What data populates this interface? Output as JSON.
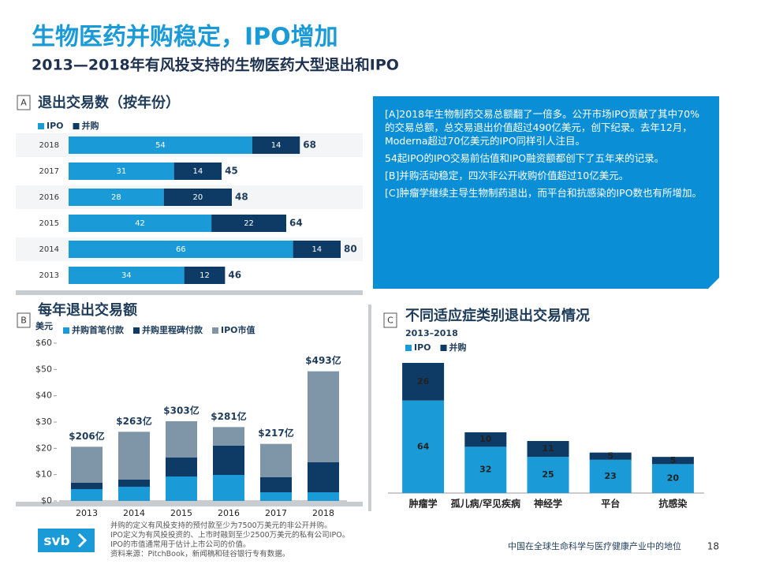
{
  "header": {
    "title": "生物医药并购稳定，IPO增加",
    "subtitle": "2013—2018年有风投支持的生物医药大型退出和IPO"
  },
  "chart_data": [
    {
      "type": "hbar",
      "label": "A",
      "title": "退出交易数（按年份）",
      "categories": [
        "2018",
        "2017",
        "2016",
        "2015",
        "2014",
        "2013"
      ],
      "series": [
        {
          "name": "IPO",
          "color": "#1a9ad6",
          "values": [
            54,
            31,
            28,
            42,
            66,
            34
          ]
        },
        {
          "name": "并购",
          "color": "#0d3b66",
          "values": [
            14,
            14,
            20,
            22,
            14,
            12
          ]
        }
      ],
      "totals": [
        68,
        45,
        48,
        64,
        80,
        46
      ],
      "segment_labels": true
    },
    {
      "type": "bar",
      "label": "B",
      "title": "每年退出交易额",
      "ylabel": "美元",
      "categories": [
        "2013",
        "2014",
        "2015",
        "2016",
        "2017",
        "2018"
      ],
      "series": [
        {
          "name": "并购首笔付款",
          "color": "#1a9ad6",
          "values": [
            4.5,
            5.4,
            9.3,
            9.9,
            3.3,
            3.3
          ]
        },
        {
          "name": "并购里程碑付款",
          "color": "#0d3b66",
          "values": [
            2.4,
            2.7,
            7.2,
            11.1,
            5.7,
            11.4
          ]
        },
        {
          "name": "IPO市值",
          "color": "#7f95a8",
          "values": [
            13.7,
            18.2,
            13.8,
            7.1,
            12.7,
            34.6
          ]
        }
      ],
      "total_labels": [
        "$206亿",
        "$263亿",
        "$303亿",
        "$281亿",
        "$217亿",
        "$493亿"
      ],
      "ylim": [
        0,
        60
      ],
      "yticks": [
        {
          "value": 0,
          "label": "$0"
        },
        {
          "value": 10,
          "label": "$10"
        },
        {
          "value": 20,
          "label": "$20"
        },
        {
          "value": 30,
          "label": "$30"
        },
        {
          "value": 40,
          "label": "$40"
        },
        {
          "value": 50,
          "label": "$50"
        },
        {
          "value": 60,
          "label": "$60"
        }
      ],
      "grid": false
    },
    {
      "type": "bar",
      "label": "C",
      "title": "不同适应症类别退出交易情况",
      "subtitle": "2013–2018",
      "categories": [
        "肿瘤学",
        "孤儿病/罕见疾病",
        "神经学",
        "平台",
        "抗感染"
      ],
      "series": [
        {
          "name": "IPO",
          "color": "#1a9ad6",
          "values": [
            64,
            32,
            25,
            23,
            20
          ]
        },
        {
          "name": "并购",
          "color": "#0d3b66",
          "values": [
            26,
            10,
            11,
            5,
            5
          ]
        }
      ],
      "segment_labels": true
    }
  ],
  "panel": {
    "paragraphs": [
      "[A]2018年生物制药交易总额翻了一倍多。公开市场IPO贡献了其中70%的交易总额，总交易退出价值超过490亿美元，创下纪录。去年12月，Moderna超过70亿美元的IPO同样引人注目。",
      "54起IPO的IPO交易前估值和IPO融资额都创下了五年来的记录。",
      "[B]并购活动稳定，四次非公开收购价值超过10亿美元。",
      "[C]肿瘤学继续主导生物制药退出，而平台和抗感染的IPO数也有所增加。"
    ]
  },
  "footer": {
    "notes": [
      "并购的定义有风投支持的预付款至少为7500万美元的非公开并购。",
      "IPO定义为有风投投资的、上市时融到至少2500万美元的私有公司IPO。",
      "IPO的市值通常用于估计上市公司的价值。",
      "资料来源：PitchBook，新闻稿和硅谷银行专有数据。"
    ],
    "logo": "svb",
    "caption": "中国在全球生命科学与医疗健康产业中的地位",
    "page": "18"
  }
}
